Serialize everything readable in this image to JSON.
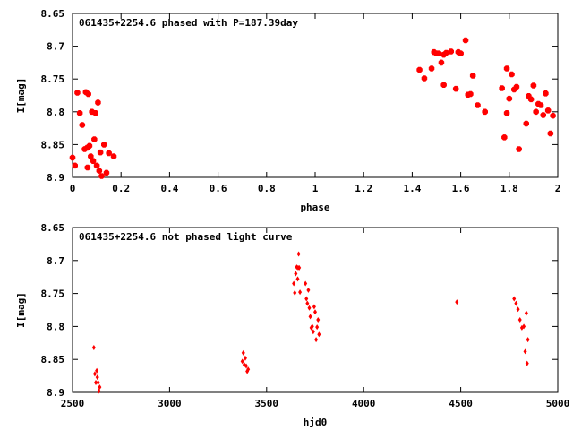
{
  "chart_data": [
    {
      "type": "scatter",
      "title": "061435+2254.6 phased with P=187.39day",
      "xlabel": "phase",
      "ylabel": "I[mag]",
      "xlim": [
        0,
        2
      ],
      "ylim": [
        8.65,
        8.9
      ],
      "y_inverted": true,
      "grid": false,
      "marker": "filled-octagon",
      "color": "#ff0000",
      "x_ticks": [
        "0",
        "0.2",
        "0.4",
        "0.6",
        "0.8",
        "1",
        "1.2",
        "1.4",
        "1.6",
        "1.8",
        "2"
      ],
      "y_ticks": [
        "8.65",
        "8.7",
        "8.75",
        "8.8",
        "8.85",
        "8.9"
      ],
      "series": [
        {
          "points": [
            [
              0.0,
              8.87
            ],
            [
              0.01,
              8.882
            ],
            [
              0.02,
              8.771
            ],
            [
              0.03,
              8.802
            ],
            [
              0.04,
              8.82
            ],
            [
              0.05,
              8.857
            ],
            [
              0.055,
              8.77
            ],
            [
              0.06,
              8.855
            ],
            [
              0.062,
              8.885
            ],
            [
              0.065,
              8.773
            ],
            [
              0.07,
              8.852
            ],
            [
              0.075,
              8.868
            ],
            [
              0.08,
              8.8
            ],
            [
              0.085,
              8.875
            ],
            [
              0.09,
              8.842
            ],
            [
              0.095,
              8.802
            ],
            [
              0.1,
              8.882
            ],
            [
              0.105,
              8.786
            ],
            [
              0.11,
              8.89
            ],
            [
              0.115,
              8.862
            ],
            [
              0.12,
              8.898
            ],
            [
              0.13,
              8.85
            ],
            [
              0.14,
              8.893
            ],
            [
              0.15,
              8.863
            ],
            [
              0.17,
              8.868
            ],
            [
              1.43,
              8.736
            ],
            [
              1.45,
              8.749
            ],
            [
              1.48,
              8.734
            ],
            [
              1.49,
              8.709
            ],
            [
              1.5,
              8.711
            ],
            [
              1.51,
              8.711
            ],
            [
              1.52,
              8.725
            ],
            [
              1.53,
              8.759
            ],
            [
              1.53,
              8.713
            ],
            [
              1.54,
              8.71
            ],
            [
              1.56,
              8.708
            ],
            [
              1.58,
              8.765
            ],
            [
              1.59,
              8.709
            ],
            [
              1.6,
              8.711
            ],
            [
              1.62,
              8.691
            ],
            [
              1.63,
              8.774
            ],
            [
              1.64,
              8.773
            ],
            [
              1.65,
              8.745
            ],
            [
              1.67,
              8.79
            ],
            [
              1.7,
              8.8
            ],
            [
              1.77,
              8.764
            ],
            [
              1.78,
              8.839
            ],
            [
              1.79,
              8.734
            ],
            [
              1.79,
              8.802
            ],
            [
              1.8,
              8.78
            ],
            [
              1.81,
              8.743
            ],
            [
              1.82,
              8.766
            ],
            [
              1.83,
              8.762
            ],
            [
              1.84,
              8.857
            ],
            [
              1.87,
              8.818
            ],
            [
              1.88,
              8.776
            ],
            [
              1.89,
              8.781
            ],
            [
              1.9,
              8.76
            ],
            [
              1.91,
              8.8
            ],
            [
              1.92,
              8.788
            ],
            [
              1.93,
              8.79
            ],
            [
              1.94,
              8.805
            ],
            [
              1.95,
              8.772
            ],
            [
              1.96,
              8.798
            ],
            [
              1.97,
              8.833
            ],
            [
              1.98,
              8.806
            ]
          ]
        }
      ]
    },
    {
      "type": "scatter",
      "title": "061435+2254.6 not phased light curve",
      "xlabel": "hjd0",
      "ylabel": "I[mag]",
      "xlim": [
        2500,
        5000
      ],
      "ylim": [
        8.65,
        8.9
      ],
      "y_inverted": true,
      "grid": false,
      "marker": "small-diamond",
      "color": "#ff0000",
      "x_ticks": [
        "2500",
        "3000",
        "3500",
        "4000",
        "4500",
        "5000"
      ],
      "y_ticks": [
        "8.65",
        "8.7",
        "8.75",
        "8.8",
        "8.85",
        "8.9"
      ],
      "series": [
        {
          "points": [
            [
              2610,
              8.832
            ],
            [
              2615,
              8.872
            ],
            [
              2620,
              8.885
            ],
            [
              2625,
              8.867
            ],
            [
              2628,
              8.877
            ],
            [
              2632,
              8.885
            ],
            [
              2636,
              8.898
            ],
            [
              2640,
              8.892
            ],
            [
              3375,
              8.853
            ],
            [
              3380,
              8.84
            ],
            [
              3385,
              8.858
            ],
            [
              3390,
              8.848
            ],
            [
              3395,
              8.86
            ],
            [
              3400,
              8.868
            ],
            [
              3405,
              8.865
            ],
            [
              3640,
              8.735
            ],
            [
              3645,
              8.749
            ],
            [
              3650,
              8.72
            ],
            [
              3655,
              8.71
            ],
            [
              3660,
              8.728
            ],
            [
              3662,
              8.711
            ],
            [
              3665,
              8.69
            ],
            [
              3668,
              8.711
            ],
            [
              3672,
              8.748
            ],
            [
              3700,
              8.735
            ],
            [
              3705,
              8.758
            ],
            [
              3710,
              8.765
            ],
            [
              3715,
              8.745
            ],
            [
              3720,
              8.772
            ],
            [
              3725,
              8.785
            ],
            [
              3730,
              8.802
            ],
            [
              3735,
              8.8
            ],
            [
              3740,
              8.808
            ],
            [
              3745,
              8.77
            ],
            [
              3750,
              8.778
            ],
            [
              3755,
              8.82
            ],
            [
              3760,
              8.801
            ],
            [
              3765,
              8.79
            ],
            [
              3770,
              8.812
            ],
            [
              4480,
              8.763
            ],
            [
              4775,
              8.758
            ],
            [
              4785,
              8.765
            ],
            [
              4795,
              8.774
            ],
            [
              4805,
              8.79
            ],
            [
              4815,
              8.802
            ],
            [
              4825,
              8.8
            ],
            [
              4832,
              8.838
            ],
            [
              4838,
              8.78
            ],
            [
              4842,
              8.856
            ],
            [
              4846,
              8.82
            ]
          ]
        }
      ]
    }
  ]
}
